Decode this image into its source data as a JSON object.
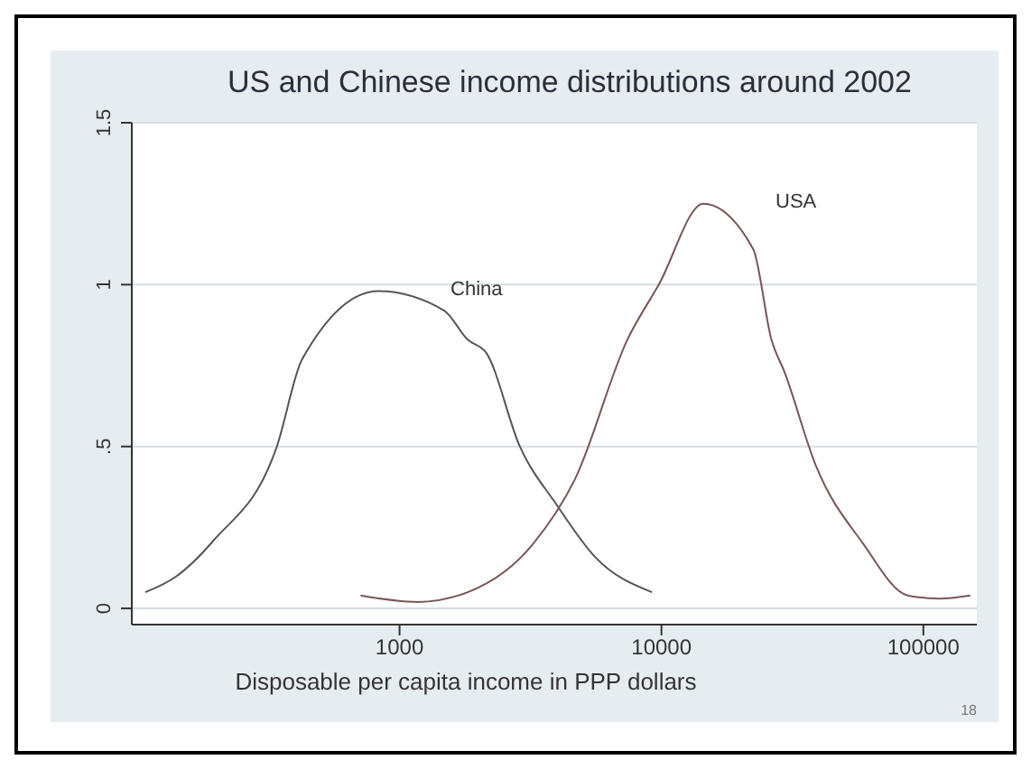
{
  "chart_data": {
    "type": "line",
    "title": "US and Chinese income distributions around 2002",
    "xlabel": "Disposable per capita income in PPP dollars",
    "log": "x",
    "xlim": [
      95,
      160000
    ],
    "xticks": [
      1000,
      10000,
      100000
    ],
    "ylim": [
      -0.05,
      1.5
    ],
    "yticks": [
      0,
      {
        "value": 0.5,
        "label": ".5"
      },
      1,
      1.5
    ],
    "grid": "y",
    "marker": "none",
    "line_style": "solid",
    "legend": false,
    "annotations": [
      "18"
    ],
    "series": [
      {
        "name": "China",
        "color": "#555555",
        "x": [
          107,
          141,
          195,
          340,
          425,
          830,
          1480,
          1820,
          2140,
          2880,
          3980,
          5560,
          9200
        ],
        "values": [
          0.05,
          0.1,
          0.21,
          0.5,
          0.77,
          0.98,
          0.92,
          0.83,
          0.79,
          0.5,
          0.32,
          0.16,
          0.05
        ]
      },
      {
        "name": "USA",
        "color": "#7a5555",
        "x": [
          710,
          1175,
          1820,
          3240,
          4680,
          7410,
          9770,
          14450,
          22400,
          26300,
          29500,
          38900,
          58900,
          87100,
          115000,
          151000
        ],
        "values": [
          0.04,
          0.02,
          0.05,
          0.2,
          0.4,
          0.83,
          1.0,
          1.25,
          1.11,
          0.83,
          0.73,
          0.44,
          0.2,
          0.04,
          0.03,
          0.04
        ]
      }
    ]
  }
}
